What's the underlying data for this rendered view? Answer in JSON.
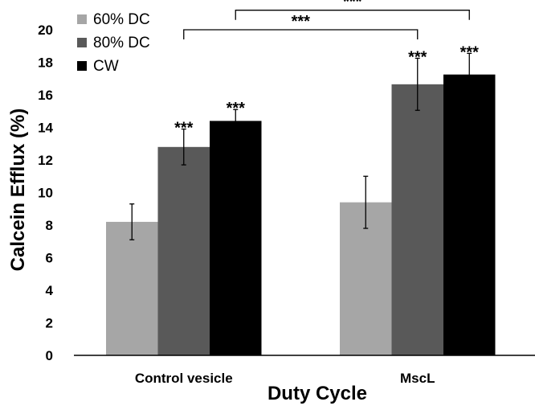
{
  "chart_data": {
    "type": "bar",
    "title": "",
    "xlabel": "Duty Cycle",
    "ylabel": "Calcein Efflux (%)",
    "ylim": [
      0,
      20
    ],
    "yticks": [
      "0",
      "2",
      "4",
      "6",
      "8",
      "10",
      "12",
      "14",
      "16",
      "18",
      "20"
    ],
    "categories": [
      "Control vesicle",
      "MscL"
    ],
    "series": [
      {
        "name": "60% DC",
        "color": "#a6a6a6",
        "values": [
          8.2,
          9.4
        ],
        "errors": [
          1.1,
          1.6
        ],
        "sig": [
          "",
          ""
        ]
      },
      {
        "name": "80% DC",
        "color": "#595959",
        "values": [
          12.8,
          16.65
        ],
        "errors": [
          1.1,
          1.6
        ],
        "sig": [
          "***",
          "***"
        ]
      },
      {
        "name": "CW",
        "color": "#000000",
        "values": [
          14.4,
          17.25
        ],
        "errors": [
          0.7,
          1.3
        ],
        "sig": [
          "***",
          "***"
        ]
      }
    ],
    "legend_position": "top-left",
    "comparisons": [
      {
        "from_category": 0,
        "from_series": 1,
        "to_category": 1,
        "to_series": 1,
        "level": 20.0,
        "label": "***"
      },
      {
        "from_category": 0,
        "from_series": 2,
        "to_category": 1,
        "to_series": 2,
        "level": 21.2,
        "label": "***"
      }
    ]
  }
}
